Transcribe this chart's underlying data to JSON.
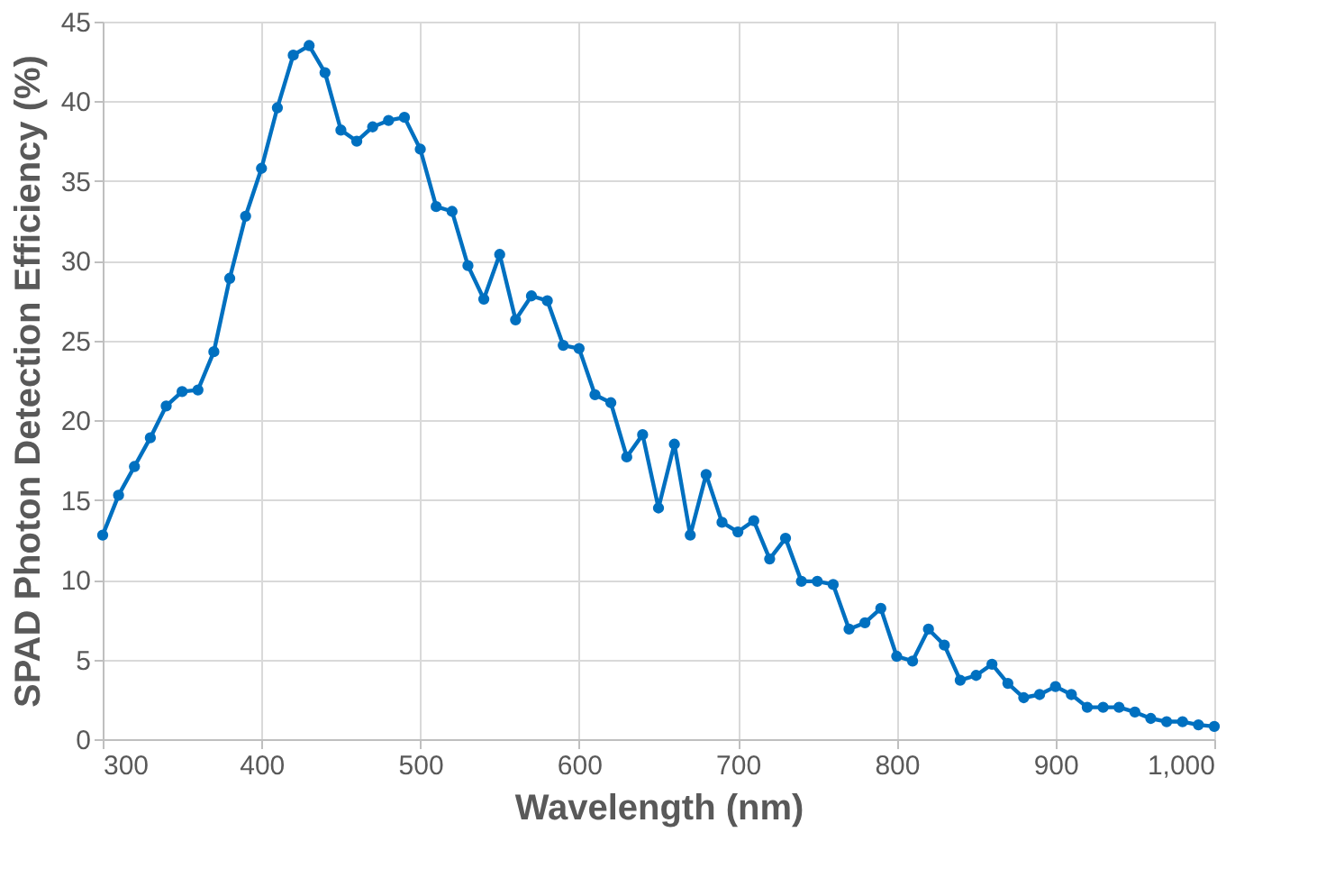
{
  "chart_data": {
    "type": "line",
    "xlabel": "Wavelength (nm)",
    "ylabel": "SPAD Photon Detection Efficiency (%)",
    "x": [
      300,
      310,
      320,
      330,
      340,
      350,
      360,
      370,
      380,
      390,
      400,
      410,
      420,
      430,
      440,
      450,
      460,
      470,
      480,
      490,
      500,
      510,
      520,
      530,
      540,
      550,
      560,
      570,
      580,
      590,
      600,
      610,
      620,
      630,
      640,
      650,
      660,
      670,
      680,
      690,
      700,
      710,
      720,
      730,
      740,
      750,
      760,
      770,
      780,
      790,
      800,
      810,
      820,
      830,
      840,
      850,
      860,
      870,
      880,
      890,
      900,
      910,
      920,
      930,
      940,
      950,
      960,
      970,
      980,
      990,
      1000
    ],
    "series": [
      {
        "color": "#0070c0",
        "values": [
          12.8,
          15.3,
          17.1,
          18.9,
          20.9,
          21.8,
          21.9,
          24.3,
          28.9,
          32.8,
          35.8,
          39.6,
          42.9,
          43.5,
          41.8,
          38.2,
          37.5,
          38.4,
          38.8,
          39.0,
          37.0,
          33.4,
          33.1,
          29.7,
          27.6,
          30.4,
          26.3,
          27.8,
          27.5,
          24.7,
          24.5,
          21.6,
          21.1,
          17.7,
          19.1,
          14.5,
          18.5,
          12.8,
          16.6,
          13.6,
          13.0,
          13.7,
          11.3,
          12.6,
          9.9,
          9.9,
          9.7,
          6.9,
          7.3,
          8.2,
          5.2,
          4.9,
          6.9,
          5.9,
          3.7,
          4.0,
          4.7,
          3.5,
          2.6,
          2.8,
          3.3,
          2.8,
          2.0,
          2.0,
          2.0,
          1.7,
          1.3,
          1.1,
          1.1,
          0.9,
          0.8
        ]
      }
    ],
    "xlim": [
      300,
      1000
    ],
    "xticks": [
      300,
      400,
      500,
      600,
      700,
      800,
      900,
      {
        "value": 1000,
        "label": "1,000"
      }
    ],
    "ylim": [
      0,
      45
    ],
    "yticks": [
      0,
      5,
      10,
      15,
      20,
      25,
      30,
      35,
      40,
      45
    ],
    "grid": true,
    "marker": "circle",
    "line_style": "solid"
  }
}
